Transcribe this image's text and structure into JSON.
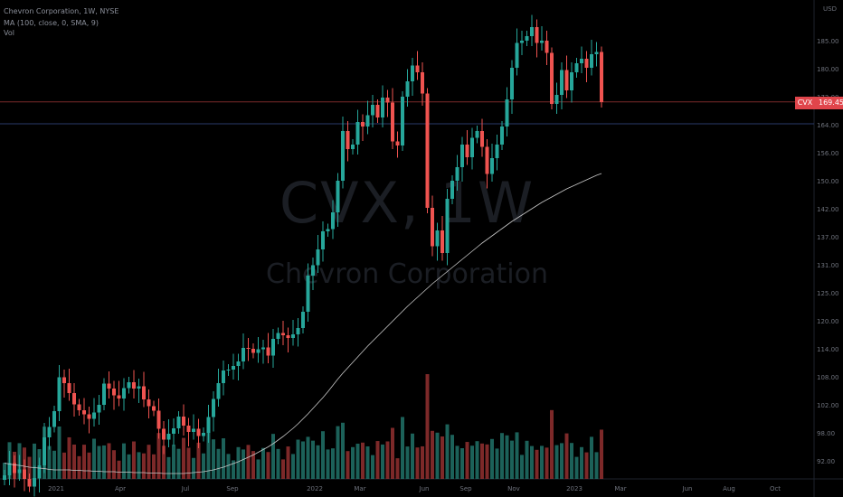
{
  "legend": {
    "title": "Chevron Corporation, 1W, NYSE",
    "ma": "MA (100, close, 0, SMA, 9)",
    "vol": "Vol"
  },
  "watermark": {
    "symbol": "CVX, 1W",
    "name": "Chevron Corporation"
  },
  "price_tag": {
    "symbol": "CVX",
    "value": "169.45"
  },
  "colors": {
    "up": "#26a69a",
    "down": "#ef5350",
    "ma": "#c8c8c8",
    "hline_red": "#7a2a2a",
    "hline_blue": "#2a3a6a"
  },
  "chart_data": {
    "type": "candlestick",
    "title": "Chevron Corporation, 1W, NYSE",
    "y_axis_ticks": [
      "185.00",
      "180.00",
      "172.00",
      "164.00",
      "156.00",
      "150.00",
      "142.00",
      "137.00",
      "131.00",
      "125.00",
      "120.00",
      "114.00",
      "108.00",
      "102.00",
      "98.00",
      "92.00"
    ],
    "y_axis_top_label": "USD",
    "x_axis_ticks": [
      "2021",
      "Apr",
      "Jul",
      "Sep",
      "2022",
      "Mar",
      "Jun",
      "Sep",
      "Nov",
      "2023",
      "Mar",
      "Jun",
      "Aug",
      "Oct"
    ],
    "y_range": [
      86,
      190
    ],
    "horizontal_lines": [
      {
        "name": "last-price-line",
        "value": 169.45
      },
      {
        "name": "reference-line",
        "value": 164.6
      }
    ],
    "close": [
      86.8,
      89.5,
      87.3,
      88.1,
      86.0,
      84.3,
      86.2,
      89.0,
      95.2,
      97.5,
      101.0,
      108.5,
      107.2,
      105.0,
      102.5,
      101.2,
      100.3,
      99.3,
      100.7,
      102.4,
      107.1,
      106.0,
      104.5,
      103.8,
      106.1,
      107.4,
      106.0,
      106.5,
      103.6,
      102.1,
      101.1,
      97.1,
      94.7,
      96.0,
      97.2,
      99.8,
      97.8,
      96.4,
      97.1,
      95.5,
      96.2,
      99.7,
      103.7,
      107.2,
      110.0,
      110.2,
      111.0,
      112.0,
      115.0,
      114.8,
      113.9,
      114.7,
      115.1,
      113.3,
      117.0,
      118.3,
      117.8,
      117.2,
      118.0,
      119.4,
      123.0,
      131.0,
      133.3,
      136.8,
      140.8,
      141.3,
      145.0,
      152.0,
      163.0,
      159.0,
      160.0,
      165.0,
      164.0,
      166.5,
      168.8,
      166.0,
      170.4,
      169.3,
      160.7,
      159.8,
      170.6,
      174.0,
      177.5,
      176.0,
      171.3,
      146.0,
      137.5,
      141.0,
      136.0,
      148.0,
      152.0,
      155.0,
      160.0,
      157.2,
      161.5,
      163.0,
      159.5,
      153.5,
      157.0,
      160.0,
      164.0,
      170.0,
      177.0,
      182.5,
      183.0,
      184.0,
      186.0,
      182.5,
      183.0,
      180.3,
      169.0,
      171.0,
      176.5,
      172.0,
      176.0,
      178.0,
      179.0,
      177.0,
      180.0,
      180.5,
      169.4
    ],
    "ma100": [
      89.5,
      89.3,
      89.1,
      89.0,
      88.8,
      88.6,
      88.5,
      88.4,
      88.3,
      88.1,
      88.0,
      88.0,
      88.0,
      88.0,
      87.9,
      87.9,
      87.8,
      87.8,
      87.7,
      87.7,
      87.6,
      87.6,
      87.6,
      87.5,
      87.5,
      87.5,
      87.4,
      87.4,
      87.4,
      87.3,
      87.3,
      87.3,
      87.2,
      87.2,
      87.2,
      87.2,
      87.2,
      87.3,
      87.4,
      87.5,
      87.6,
      87.8,
      88.0,
      88.3,
      88.6,
      89.0,
      89.4,
      89.8,
      90.3,
      90.8,
      91.3,
      91.9,
      92.5,
      93.1,
      93.8,
      94.6,
      95.4,
      96.3,
      97.2,
      98.2,
      99.3,
      100.4,
      101.6,
      102.8,
      104.0,
      105.3,
      106.7,
      108.1,
      109.4,
      110.6,
      111.8,
      113.0,
      114.2,
      115.4,
      116.5,
      117.6,
      118.7,
      119.8,
      120.9,
      122.0,
      123.1,
      124.2,
      125.2,
      126.2,
      127.2,
      128.2,
      129.2,
      130.1,
      131.0,
      131.9,
      132.8,
      133.7,
      134.6,
      135.5,
      136.4,
      137.3,
      138.2,
      139.0,
      139.8,
      140.6,
      141.4,
      142.2,
      143.0,
      143.7,
      144.4,
      145.1,
      145.8,
      146.5,
      147.2,
      147.8,
      148.4,
      149.0,
      149.6,
      150.2,
      150.7,
      151.2,
      151.7,
      152.2,
      152.7,
      153.2,
      153.6
    ]
  }
}
